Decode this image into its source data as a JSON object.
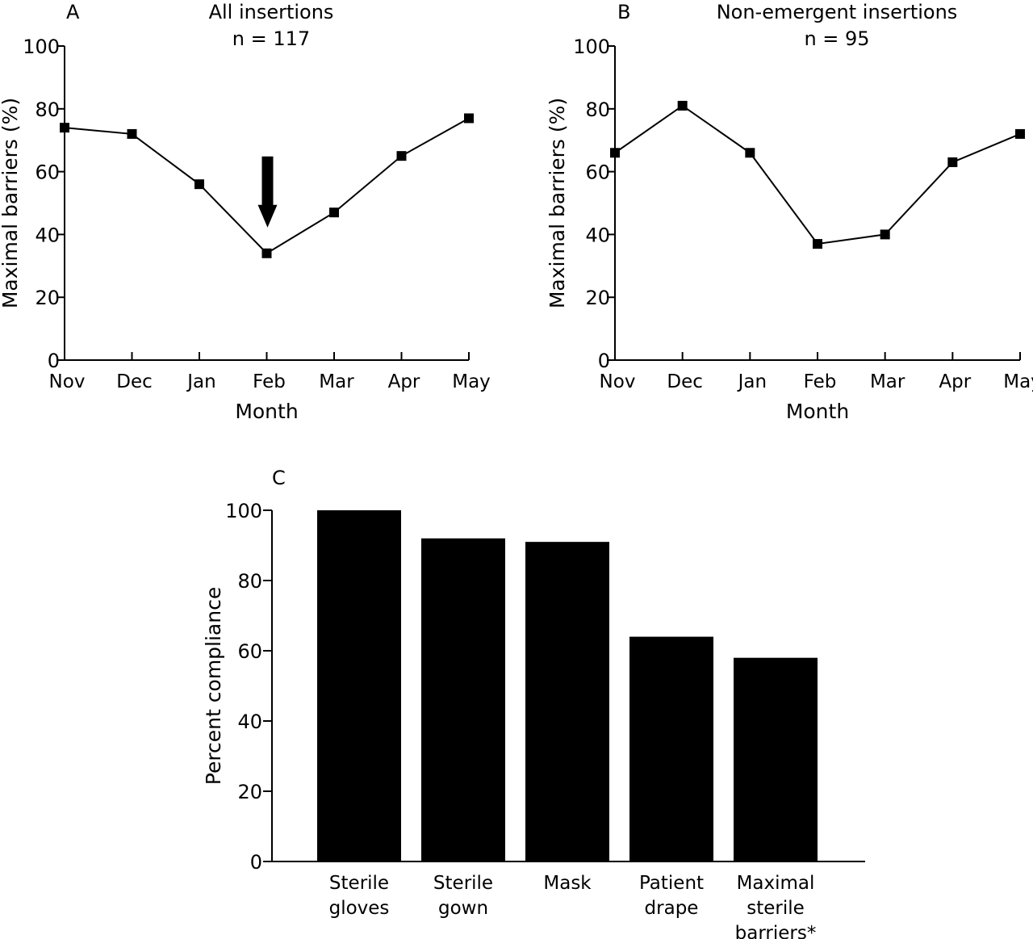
{
  "colors": {
    "ink": "#000000",
    "background": "#ffffff"
  },
  "chart_data": [
    {
      "panel": "A",
      "type": "line",
      "title": "All insertions",
      "subtitle": "n = 117",
      "xlabel": "Month",
      "ylabel": "Maximal barriers (%)",
      "categories": [
        "Nov",
        "Dec",
        "Jan",
        "Feb",
        "Mar",
        "Apr",
        "May"
      ],
      "values": [
        74,
        72,
        56,
        34,
        47,
        65,
        77
      ],
      "ylim": [
        0,
        100
      ],
      "yticks": [
        0,
        20,
        40,
        60,
        80,
        100
      ],
      "marker": "square",
      "annotation": {
        "type": "arrow",
        "category": "Feb"
      },
      "grid": false,
      "legend": "none"
    },
    {
      "panel": "B",
      "type": "line",
      "title": "Non-emergent insertions",
      "subtitle": "n = 95",
      "xlabel": "Month",
      "ylabel": "Maximal barriers (%)",
      "categories": [
        "Nov",
        "Dec",
        "Jan",
        "Feb",
        "Mar",
        "Apr",
        "May"
      ],
      "values": [
        66,
        81,
        66,
        37,
        40,
        63,
        72
      ],
      "ylim": [
        0,
        100
      ],
      "yticks": [
        0,
        20,
        40,
        60,
        80,
        100
      ],
      "marker": "square",
      "grid": false,
      "legend": "none"
    },
    {
      "panel": "C",
      "type": "bar",
      "title": "",
      "xlabel": "",
      "ylabel": "Percent compliance",
      "categories": [
        [
          "Sterile",
          "gloves"
        ],
        [
          "Sterile",
          "gown"
        ],
        [
          "Mask"
        ],
        [
          "Patient",
          "drape"
        ],
        [
          "Maximal",
          "sterile",
          "barriers*"
        ]
      ],
      "values": [
        100,
        92,
        91,
        64,
        58
      ],
      "ylim": [
        0,
        100
      ],
      "yticks": [
        0,
        20,
        40,
        60,
        80,
        100
      ],
      "grid": false,
      "legend": "none"
    }
  ]
}
